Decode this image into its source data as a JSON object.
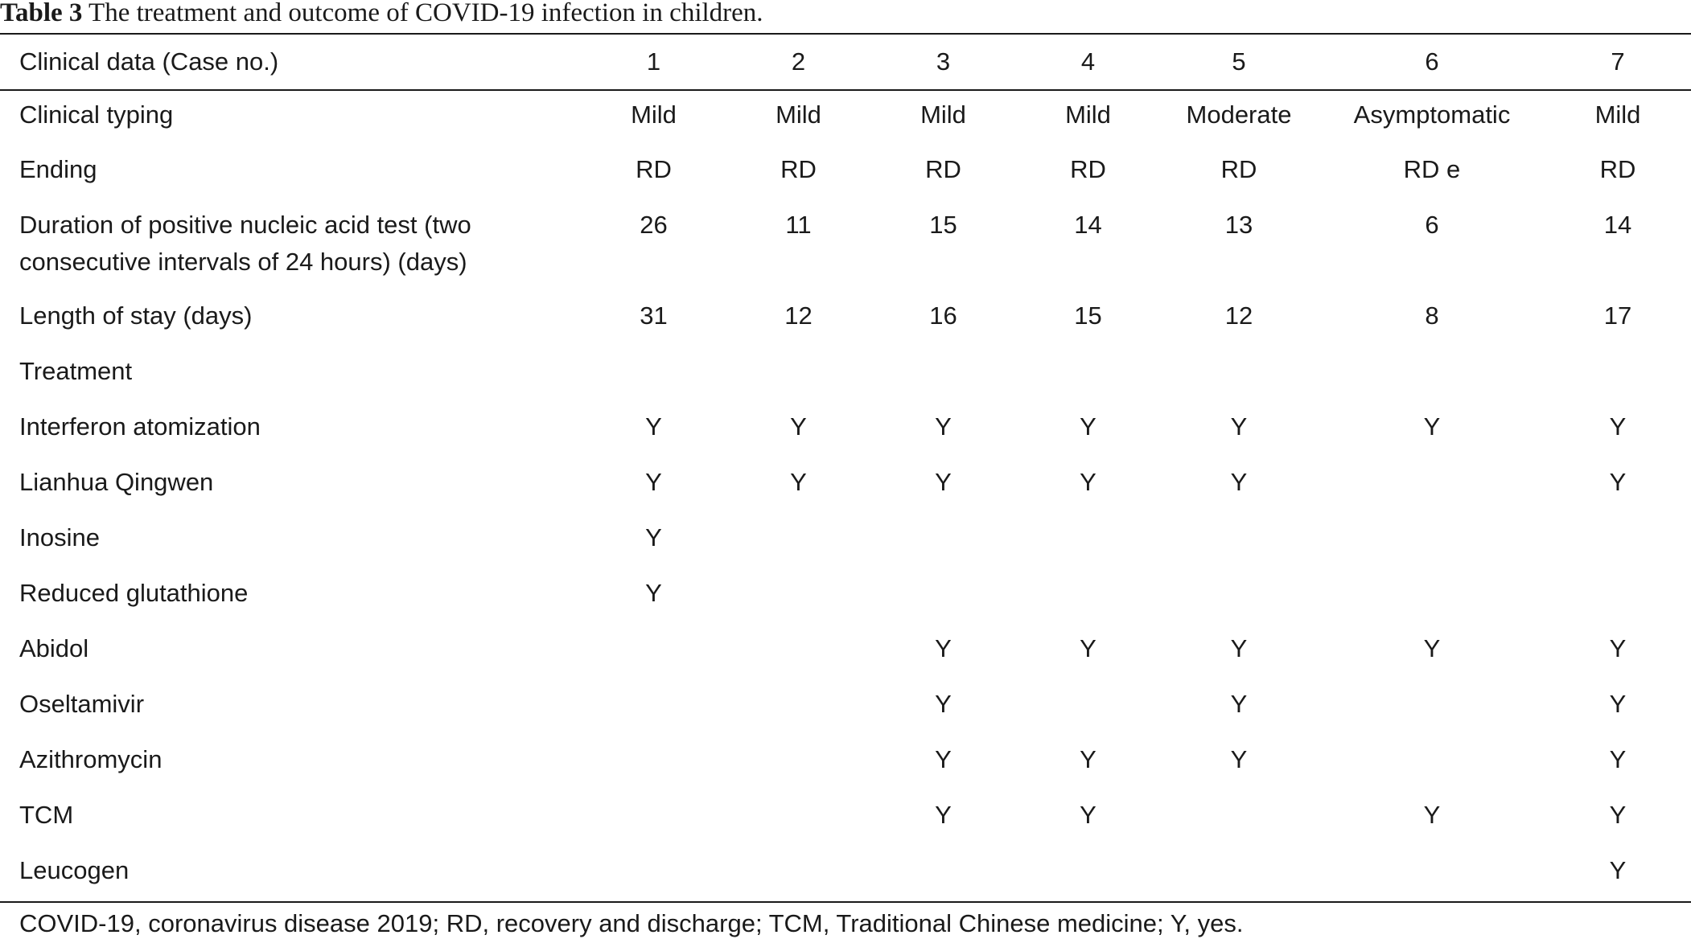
{
  "caption": {
    "label": "Table 3",
    "text": " The treatment and outcome of COVID-19 infection in children."
  },
  "table": {
    "header": [
      "Clinical data (Case no.)",
      "1",
      "2",
      "3",
      "4",
      "5",
      "6",
      "7"
    ],
    "rows": [
      [
        "Clinical typing",
        "Mild",
        "Mild",
        "Mild",
        "Mild",
        "Moderate",
        "Asymptomatic",
        "Mild"
      ],
      [
        "Ending",
        "RD",
        "RD",
        "RD",
        "RD",
        "RD",
        "RD e",
        "RD"
      ],
      [
        "Duration of positive nucleic acid test (two consecutive intervals of 24 hours) (days)",
        "26",
        "11",
        "15",
        "14",
        "13",
        "6",
        "14"
      ],
      [
        "Length of stay (days)",
        "31",
        "12",
        "16",
        "15",
        "12",
        "8",
        "17"
      ],
      [
        "Treatment",
        "",
        "",
        "",
        "",
        "",
        "",
        ""
      ],
      [
        "Interferon atomization",
        "Y",
        "Y",
        "Y",
        "Y",
        "Y",
        "Y",
        "Y"
      ],
      [
        "Lianhua Qingwen",
        "Y",
        "Y",
        "Y",
        "Y",
        "Y",
        "",
        "Y"
      ],
      [
        "Inosine",
        "Y",
        "",
        "",
        "",
        "",
        "",
        ""
      ],
      [
        "Reduced glutathione",
        "Y",
        "",
        "",
        "",
        "",
        "",
        ""
      ],
      [
        "Abidol",
        "",
        "",
        "Y",
        "Y",
        "Y",
        "Y",
        "Y"
      ],
      [
        "Oseltamivir",
        "",
        "",
        "Y",
        "",
        "Y",
        "",
        "Y"
      ],
      [
        "Azithromycin",
        "",
        "",
        "Y",
        "Y",
        "Y",
        "",
        "Y"
      ],
      [
        "TCM",
        "",
        "",
        "Y",
        "Y",
        "",
        "Y",
        "Y"
      ],
      [
        "Leucogen",
        "",
        "",
        "",
        "",
        "",
        "",
        "Y"
      ]
    ]
  },
  "footnote": "COVID-19, coronavirus disease 2019; RD, recovery and discharge; TCM, Traditional Chinese medicine; Y, yes."
}
